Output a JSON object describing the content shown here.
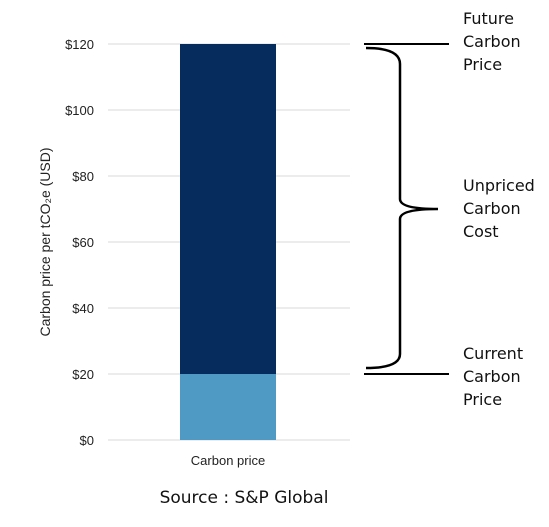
{
  "chart_data": {
    "type": "bar",
    "categories": [
      "Carbon price"
    ],
    "series": [
      {
        "values": [
          20
        ],
        "color": "#4f9ac4"
      },
      {
        "values": [
          100
        ],
        "color": "#062c5d"
      }
    ],
    "ylabel": "Carbon price per tCO₂e (USD)",
    "ylim": [
      0,
      120
    ],
    "yticks": [
      {
        "value": 0,
        "label": "$0"
      },
      {
        "value": 20,
        "label": "$20"
      },
      {
        "value": 40,
        "label": "$40"
      },
      {
        "value": 60,
        "label": "$60"
      },
      {
        "value": 80,
        "label": "$80"
      },
      {
        "value": 100,
        "label": "$100"
      },
      {
        "value": 120,
        "label": "$120"
      }
    ],
    "grid": true,
    "annotations": [
      {
        "lines": [
          "Future",
          "Carbon",
          "Price"
        ],
        "value": 120
      },
      {
        "lines": [
          "Unpriced",
          "Carbon",
          "Cost"
        ],
        "from": 20,
        "to": 120
      },
      {
        "lines": [
          "Current",
          "Carbon",
          "Price"
        ],
        "value": 20
      }
    ],
    "source": "Source : S&P Global"
  }
}
